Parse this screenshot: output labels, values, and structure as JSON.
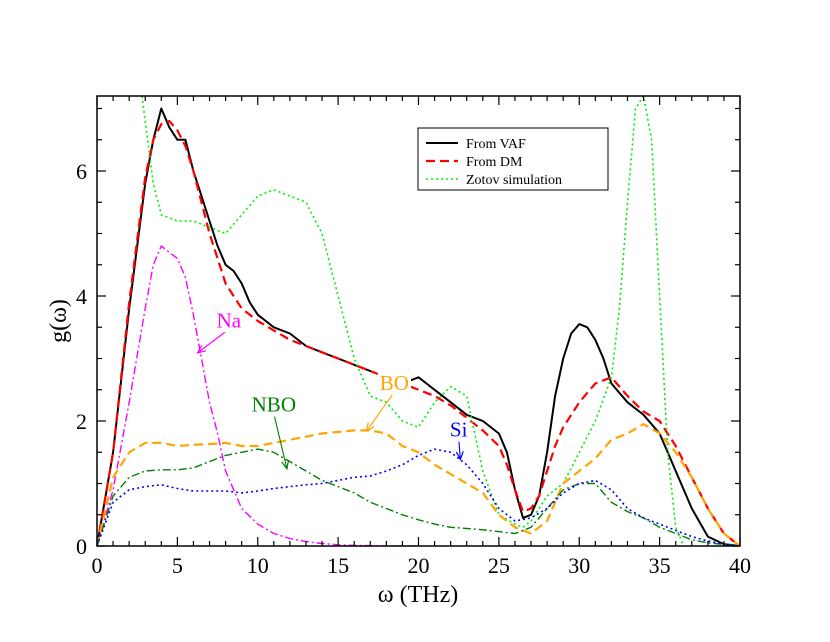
{
  "chart_data": {
    "type": "line",
    "title": "",
    "xlabel": "ω (THz)",
    "ylabel": "g(ω)",
    "xlim": [
      0,
      40
    ],
    "ylim": [
      0,
      7.2
    ],
    "x_ticks": [
      0,
      5,
      10,
      15,
      20,
      25,
      30,
      35,
      40
    ],
    "x_tick_labels": [
      "0",
      "5",
      "10",
      "15",
      "20",
      "25",
      "30",
      "35",
      "40"
    ],
    "y_ticks": [
      0,
      2,
      4,
      6
    ],
    "y_tick_labels": [
      "0",
      "2",
      "4",
      "6"
    ],
    "grid": false,
    "legend_position": "top-right",
    "series": [
      {
        "name": "From VAF",
        "legend": true,
        "color": "#000000",
        "dash": "solid",
        "points": [
          [
            0,
            0
          ],
          [
            1,
            1.5
          ],
          [
            2,
            3.8
          ],
          [
            3,
            5.8
          ],
          [
            3.5,
            6.5
          ],
          [
            4,
            7.0
          ],
          [
            4.5,
            6.7
          ],
          [
            5,
            6.5
          ],
          [
            5.5,
            6.5
          ],
          [
            6,
            6.0
          ],
          [
            6.5,
            5.6
          ],
          [
            7,
            5.2
          ],
          [
            7.5,
            4.8
          ],
          [
            8,
            4.5
          ],
          [
            8.5,
            4.4
          ],
          [
            9,
            4.2
          ],
          [
            9.5,
            3.9
          ],
          [
            10,
            3.7
          ],
          [
            10.5,
            3.6
          ],
          [
            11,
            3.5
          ],
          [
            12,
            3.4
          ],
          [
            13,
            3.2
          ],
          [
            14,
            3.1
          ],
          [
            15,
            3.0
          ],
          [
            16,
            2.9
          ],
          [
            17,
            2.8
          ],
          [
            18,
            2.7
          ],
          [
            19,
            2.6
          ],
          [
            20,
            2.7
          ],
          [
            20.5,
            2.6
          ],
          [
            21,
            2.5
          ],
          [
            22,
            2.3
          ],
          [
            23,
            2.1
          ],
          [
            24,
            2.0
          ],
          [
            25,
            1.8
          ],
          [
            25.5,
            1.5
          ],
          [
            26,
            0.9
          ],
          [
            26.5,
            0.45
          ],
          [
            27,
            0.5
          ],
          [
            27.5,
            0.8
          ],
          [
            28,
            1.5
          ],
          [
            28.5,
            2.4
          ],
          [
            29,
            3.0
          ],
          [
            29.5,
            3.4
          ],
          [
            30,
            3.55
          ],
          [
            30.5,
            3.5
          ],
          [
            31,
            3.3
          ],
          [
            31.5,
            3.0
          ],
          [
            32,
            2.6
          ],
          [
            33,
            2.3
          ],
          [
            34,
            2.1
          ],
          [
            35,
            1.8
          ],
          [
            35.5,
            1.5
          ],
          [
            36,
            1.2
          ],
          [
            37,
            0.6
          ],
          [
            38,
            0.15
          ],
          [
            39,
            0.03
          ],
          [
            40,
            0
          ]
        ]
      },
      {
        "name": "From DM",
        "legend": true,
        "color": "#ff0000",
        "dash": "dashed",
        "points": [
          [
            0,
            0
          ],
          [
            1,
            1.5
          ],
          [
            2,
            3.9
          ],
          [
            3,
            5.9
          ],
          [
            3.5,
            6.5
          ],
          [
            4,
            6.75
          ],
          [
            4.5,
            6.8
          ],
          [
            5,
            6.65
          ],
          [
            5.5,
            6.4
          ],
          [
            6,
            6.0
          ],
          [
            6.5,
            5.5
          ],
          [
            7,
            5.0
          ],
          [
            7.5,
            4.6
          ],
          [
            8,
            4.2
          ],
          [
            8.5,
            4.0
          ],
          [
            9,
            3.8
          ],
          [
            10,
            3.6
          ],
          [
            11,
            3.45
          ],
          [
            12,
            3.3
          ],
          [
            13,
            3.2
          ],
          [
            14,
            3.1
          ],
          [
            15,
            3.0
          ],
          [
            16,
            2.9
          ],
          [
            17,
            2.8
          ],
          [
            18,
            2.7
          ],
          [
            19,
            2.6
          ],
          [
            20,
            2.5
          ],
          [
            21,
            2.4
          ],
          [
            22,
            2.25
          ],
          [
            23,
            2.05
          ],
          [
            24,
            1.85
          ],
          [
            25,
            1.6
          ],
          [
            25.5,
            1.3
          ],
          [
            26,
            0.9
          ],
          [
            26.5,
            0.55
          ],
          [
            27,
            0.6
          ],
          [
            27.5,
            0.8
          ],
          [
            28,
            1.2
          ],
          [
            28.5,
            1.6
          ],
          [
            29,
            1.9
          ],
          [
            30,
            2.3
          ],
          [
            31,
            2.6
          ],
          [
            32,
            2.7
          ],
          [
            33,
            2.4
          ],
          [
            34,
            2.15
          ],
          [
            35,
            2.0
          ],
          [
            36,
            1.6
          ],
          [
            37,
            1.1
          ],
          [
            38,
            0.6
          ],
          [
            39,
            0.2
          ],
          [
            40,
            0
          ]
        ]
      },
      {
        "name": "Zotov simulation",
        "legend": true,
        "color": "#00ee00",
        "dash": "dotted",
        "points": [
          [
            2.8,
            7.2
          ],
          [
            3,
            6.8
          ],
          [
            3.5,
            5.8
          ],
          [
            4,
            5.3
          ],
          [
            5,
            5.2
          ],
          [
            6,
            5.2
          ],
          [
            7,
            5.1
          ],
          [
            8,
            5.0
          ],
          [
            9,
            5.3
          ],
          [
            10,
            5.6
          ],
          [
            11,
            5.7
          ],
          [
            12,
            5.6
          ],
          [
            13,
            5.5
          ],
          [
            14,
            5.0
          ],
          [
            15,
            4.0
          ],
          [
            16,
            3.0
          ],
          [
            17,
            2.4
          ],
          [
            18,
            2.3
          ],
          [
            19,
            2.0
          ],
          [
            20,
            1.9
          ],
          [
            21,
            2.3
          ],
          [
            22,
            2.55
          ],
          [
            23,
            2.4
          ],
          [
            24,
            1.2
          ],
          [
            25,
            0.5
          ],
          [
            26,
            0.35
          ],
          [
            26.5,
            0.3
          ],
          [
            27,
            0.4
          ],
          [
            28,
            0.8
          ],
          [
            29,
            1.0
          ],
          [
            30,
            1.5
          ],
          [
            31,
            2.0
          ],
          [
            32,
            2.7
          ],
          [
            32.5,
            3.8
          ],
          [
            33,
            5.5
          ],
          [
            33.5,
            7.0
          ],
          [
            34,
            7.2
          ],
          [
            34.5,
            6.5
          ],
          [
            35,
            4.0
          ],
          [
            35.5,
            1.5
          ],
          [
            36,
            0.3
          ],
          [
            36.5,
            0
          ]
        ]
      },
      {
        "name": "Na",
        "legend": false,
        "color": "#ff00ff",
        "dash": "dashdot",
        "points": [
          [
            0,
            0
          ],
          [
            1,
            0.9
          ],
          [
            2,
            2.3
          ],
          [
            3,
            3.8
          ],
          [
            3.5,
            4.5
          ],
          [
            4,
            4.8
          ],
          [
            4.5,
            4.7
          ],
          [
            5,
            4.6
          ],
          [
            5.5,
            4.3
          ],
          [
            6,
            3.7
          ],
          [
            6.5,
            3.0
          ],
          [
            7,
            2.3
          ],
          [
            7.5,
            1.8
          ],
          [
            8,
            1.2
          ],
          [
            9,
            0.6
          ],
          [
            10,
            0.35
          ],
          [
            11,
            0.2
          ],
          [
            12,
            0.12
          ],
          [
            13,
            0.07
          ],
          [
            14,
            0.04
          ],
          [
            15,
            0.02
          ],
          [
            16,
            0.01
          ],
          [
            18,
            0
          ],
          [
            20,
            0
          ]
        ]
      },
      {
        "name": "BO",
        "legend": false,
        "color": "#ffa500",
        "dash": "dashed",
        "points": [
          [
            0,
            0
          ],
          [
            1,
            1.1
          ],
          [
            2,
            1.5
          ],
          [
            3,
            1.65
          ],
          [
            4,
            1.65
          ],
          [
            5,
            1.6
          ],
          [
            6,
            1.62
          ],
          [
            7,
            1.63
          ],
          [
            8,
            1.65
          ],
          [
            9,
            1.6
          ],
          [
            10,
            1.6
          ],
          [
            12,
            1.7
          ],
          [
            14,
            1.8
          ],
          [
            16,
            1.85
          ],
          [
            17,
            1.85
          ],
          [
            18,
            1.8
          ],
          [
            19,
            1.6
          ],
          [
            20,
            1.5
          ],
          [
            21,
            1.3
          ],
          [
            22,
            1.15
          ],
          [
            23,
            1.0
          ],
          [
            24,
            0.85
          ],
          [
            25,
            0.5
          ],
          [
            26,
            0.3
          ],
          [
            27,
            0.2
          ],
          [
            28,
            0.4
          ],
          [
            29,
            1.0
          ],
          [
            30,
            1.2
          ],
          [
            31,
            1.4
          ],
          [
            32,
            1.7
          ],
          [
            33,
            1.8
          ],
          [
            34,
            1.95
          ],
          [
            35,
            1.8
          ],
          [
            36,
            1.5
          ],
          [
            37,
            1.1
          ],
          [
            38,
            0.6
          ],
          [
            39,
            0.2
          ],
          [
            40,
            0
          ]
        ]
      },
      {
        "name": "NBO",
        "legend": false,
        "color": "#008000",
        "dash": "dashdot",
        "points": [
          [
            0,
            0
          ],
          [
            1,
            0.8
          ],
          [
            2,
            1.1
          ],
          [
            3,
            1.2
          ],
          [
            4,
            1.22
          ],
          [
            5,
            1.22
          ],
          [
            6,
            1.25
          ],
          [
            7,
            1.35
          ],
          [
            8,
            1.45
          ],
          [
            9,
            1.5
          ],
          [
            10,
            1.55
          ],
          [
            11,
            1.5
          ],
          [
            12,
            1.35
          ],
          [
            13,
            1.2
          ],
          [
            14,
            1.05
          ],
          [
            15,
            0.95
          ],
          [
            16,
            0.85
          ],
          [
            17,
            0.7
          ],
          [
            18,
            0.6
          ],
          [
            19,
            0.5
          ],
          [
            20,
            0.42
          ],
          [
            21,
            0.35
          ],
          [
            22,
            0.3
          ],
          [
            23,
            0.28
          ],
          [
            24,
            0.26
          ],
          [
            25,
            0.23
          ],
          [
            26,
            0.2
          ],
          [
            27,
            0.3
          ],
          [
            28,
            0.6
          ],
          [
            29,
            0.9
          ],
          [
            30,
            1.0
          ],
          [
            31,
            1.0
          ],
          [
            32,
            0.7
          ],
          [
            33,
            0.55
          ],
          [
            34,
            0.45
          ],
          [
            35,
            0.3
          ],
          [
            36,
            0.2
          ],
          [
            37,
            0.1
          ],
          [
            38,
            0.05
          ],
          [
            40,
            0
          ]
        ]
      },
      {
        "name": "Si",
        "legend": false,
        "color": "#0000ff",
        "dash": "dotted",
        "points": [
          [
            0,
            0
          ],
          [
            1,
            0.7
          ],
          [
            2,
            0.9
          ],
          [
            3,
            0.95
          ],
          [
            4,
            0.98
          ],
          [
            5,
            0.92
          ],
          [
            6,
            0.88
          ],
          [
            7,
            0.88
          ],
          [
            8,
            0.88
          ],
          [
            9,
            0.85
          ],
          [
            10,
            0.88
          ],
          [
            11,
            0.92
          ],
          [
            12,
            0.95
          ],
          [
            13,
            0.98
          ],
          [
            14,
            1.0
          ],
          [
            15,
            1.05
          ],
          [
            16,
            1.1
          ],
          [
            17,
            1.12
          ],
          [
            18,
            1.2
          ],
          [
            19,
            1.3
          ],
          [
            20,
            1.45
          ],
          [
            21,
            1.55
          ],
          [
            22,
            1.5
          ],
          [
            23,
            1.3
          ],
          [
            24,
            1.0
          ],
          [
            25,
            0.6
          ],
          [
            26,
            0.4
          ],
          [
            27,
            0.45
          ],
          [
            28,
            0.6
          ],
          [
            29,
            0.85
          ],
          [
            30,
            1.0
          ],
          [
            31,
            1.05
          ],
          [
            32,
            0.9
          ],
          [
            33,
            0.6
          ],
          [
            34,
            0.45
          ],
          [
            35,
            0.35
          ],
          [
            36,
            0.25
          ],
          [
            37,
            0.15
          ],
          [
            38,
            0.08
          ],
          [
            39,
            0.03
          ],
          [
            40,
            0
          ]
        ]
      }
    ],
    "annotations": [
      {
        "text": "Na",
        "color": "#ff00ff",
        "label_at": [
          8.2,
          3.5
        ],
        "arrow_to": [
          6.3,
          3.1
        ]
      },
      {
        "text": "BO",
        "color": "#ffa500",
        "label_at": [
          18.5,
          2.5
        ],
        "arrow_to": [
          16.8,
          1.85
        ]
      },
      {
        "text": "NBO",
        "color": "#008000",
        "label_at": [
          11.0,
          2.15
        ],
        "arrow_to": [
          11.8,
          1.25
        ]
      },
      {
        "text": "Si",
        "color": "#0000ff",
        "label_at": [
          22.5,
          1.75
        ],
        "arrow_to": [
          22.6,
          1.4
        ]
      }
    ]
  }
}
